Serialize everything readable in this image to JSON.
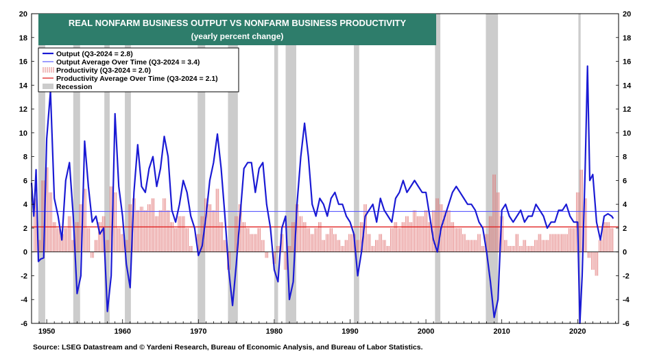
{
  "chart_data": {
    "type": "line",
    "title": "REAL NONFARM BUSINESS OUTPUT VS NONFARM BUSINESS PRODUCTIVITY",
    "subtitle": "(yearly percent change)",
    "source": "Source: LSEG Datastream and © Yardeni Research, Bureau of Economic Analysis, and Bureau of Labor Statistics.",
    "xlim": [
      1948,
      2025.4
    ],
    "ylim": [
      -6,
      20
    ],
    "y_ticks": [
      -6,
      -4,
      -2,
      0,
      2,
      4,
      6,
      8,
      10,
      12,
      14,
      16,
      18,
      20
    ],
    "y_tick_labels": [
      "-6",
      "-4",
      "-2",
      "0",
      "2",
      "4",
      "6",
      "8",
      "10",
      "12",
      "14",
      "16",
      "18",
      "20"
    ],
    "x_tick_labels": [
      "1950",
      "1960",
      "1970",
      "1980",
      "1990",
      "2000",
      "2010",
      "2020"
    ],
    "x_ticks": [
      1950,
      1960,
      1970,
      1980,
      1990,
      2000,
      2010,
      2020
    ],
    "legend_position": "top-left",
    "legend": [
      "Output (Q3-2024 = 2.8)",
      "Output Average Over Time (Q3-2024 = 3.4)",
      "Productivity  (Q3-2024 = 2.0)",
      "Productivity Average Over Time (Q3-2024 = 2.1)",
      "Recession"
    ],
    "colors": {
      "output": "#1a1ad4",
      "output_avg": "#5a5aff",
      "productivity": "#e07070",
      "productivity_avg": "#e02020",
      "recession": "#cccccc",
      "title_bg": "#2e7d6b"
    },
    "output_avg": 3.4,
    "productivity_avg": 2.1,
    "recessions": [
      [
        1948.9,
        1949.8
      ],
      [
        1953.5,
        1954.4
      ],
      [
        1957.6,
        1958.3
      ],
      [
        1960.3,
        1961.1
      ],
      [
        1969.9,
        1970.9
      ],
      [
        1973.9,
        1975.2
      ],
      [
        1980.0,
        1980.5
      ],
      [
        1981.5,
        1982.9
      ],
      [
        1990.5,
        1991.2
      ],
      [
        2001.2,
        2001.9
      ],
      [
        2007.9,
        2009.5
      ],
      [
        2020.1,
        2020.4
      ]
    ],
    "output_series": {
      "name": "Output",
      "x": [
        1948.0,
        1948.3,
        1948.6,
        1948.9,
        1949.2,
        1949.6,
        1950.0,
        1950.5,
        1951.0,
        1951.5,
        1952.0,
        1952.5,
        1953.0,
        1953.5,
        1954.0,
        1954.5,
        1955.0,
        1955.5,
        1956.0,
        1956.5,
        1957.0,
        1957.5,
        1958.0,
        1958.5,
        1959.0,
        1959.5,
        1960.0,
        1960.5,
        1961.0,
        1961.5,
        1962.0,
        1962.5,
        1963.0,
        1963.5,
        1964.0,
        1964.5,
        1965.0,
        1965.5,
        1966.0,
        1966.5,
        1967.0,
        1967.5,
        1968.0,
        1968.5,
        1969.0,
        1969.5,
        1970.0,
        1970.5,
        1971.0,
        1971.5,
        1972.0,
        1972.5,
        1973.0,
        1973.5,
        1974.0,
        1974.5,
        1975.0,
        1975.5,
        1976.0,
        1976.5,
        1977.0,
        1977.5,
        1978.0,
        1978.5,
        1979.0,
        1979.5,
        1980.0,
        1980.5,
        1981.0,
        1981.5,
        1982.0,
        1982.5,
        1983.0,
        1983.5,
        1984.0,
        1984.5,
        1985.0,
        1985.5,
        1986.0,
        1986.5,
        1987.0,
        1987.5,
        1988.0,
        1988.5,
        1989.0,
        1989.5,
        1990.0,
        1990.5,
        1991.0,
        1991.5,
        1992.0,
        1992.5,
        1993.0,
        1993.5,
        1994.0,
        1994.5,
        1995.0,
        1995.5,
        1996.0,
        1996.5,
        1997.0,
        1997.5,
        1998.0,
        1998.5,
        1999.0,
        1999.5,
        2000.0,
        2000.5,
        2001.0,
        2001.5,
        2002.0,
        2002.5,
        2003.0,
        2003.5,
        2004.0,
        2004.5,
        2005.0,
        2005.5,
        2006.0,
        2006.5,
        2007.0,
        2007.5,
        2008.0,
        2008.5,
        2009.0,
        2009.5,
        2010.0,
        2010.5,
        2011.0,
        2011.5,
        2012.0,
        2012.5,
        2013.0,
        2013.5,
        2014.0,
        2014.5,
        2015.0,
        2015.5,
        2016.0,
        2016.5,
        2017.0,
        2017.5,
        2018.0,
        2018.5,
        2019.0,
        2019.5,
        2020.0,
        2020.3,
        2020.6,
        2021.0,
        2021.3,
        2021.6,
        2022.0,
        2022.5,
        2023.0,
        2023.5,
        2024.0,
        2024.5,
        2024.7
      ],
      "values": [
        5.8,
        3.0,
        6.9,
        -0.8,
        -0.6,
        -0.5,
        9.5,
        13.5,
        4.5,
        3.0,
        1.0,
        6.0,
        7.5,
        3.0,
        -3.5,
        -2.0,
        9.3,
        5.5,
        2.5,
        3.0,
        1.5,
        2.0,
        -5.0,
        -2.0,
        11.6,
        5.5,
        3.0,
        -1.0,
        -3.0,
        5.0,
        9.0,
        5.5,
        5.0,
        7.0,
        8.0,
        5.5,
        7.0,
        9.7,
        8.0,
        3.5,
        2.5,
        4.0,
        6.0,
        5.0,
        3.0,
        2.0,
        -0.3,
        0.5,
        3.0,
        6.0,
        7.5,
        9.9,
        7.0,
        3.0,
        -1.5,
        -4.5,
        -1.0,
        3.0,
        7.0,
        7.5,
        7.5,
        5.0,
        7.0,
        7.5,
        4.0,
        2.0,
        -1.5,
        -2.5,
        2.0,
        3.0,
        -4.0,
        -2.5,
        4.0,
        8.0,
        10.8,
        8.0,
        4.0,
        3.0,
        4.5,
        4.0,
        3.0,
        4.5,
        5.0,
        4.0,
        4.0,
        3.0,
        2.5,
        1.5,
        -2.0,
        0.0,
        3.0,
        3.5,
        4.0,
        2.5,
        4.5,
        3.5,
        3.0,
        2.5,
        4.5,
        5.0,
        6.0,
        5.0,
        5.5,
        6.0,
        5.5,
        5.0,
        5.0,
        3.0,
        1.0,
        0.0,
        2.0,
        3.0,
        4.0,
        5.0,
        5.5,
        5.0,
        4.5,
        4.0,
        4.0,
        3.5,
        2.5,
        2.0,
        0.0,
        -2.5,
        -5.5,
        -4.0,
        3.5,
        4.0,
        3.0,
        2.5,
        3.0,
        3.5,
        2.5,
        3.0,
        3.0,
        4.0,
        3.5,
        3.0,
        2.0,
        2.5,
        2.5,
        3.5,
        3.5,
        4.0,
        3.0,
        2.5,
        2.5,
        -6.0,
        -2.0,
        7.0,
        15.6,
        6.0,
        6.5,
        2.5,
        1.0,
        3.0,
        3.2,
        3.0,
        2.8
      ]
    },
    "productivity_series": {
      "name": "Productivity",
      "x": [
        1948.5,
        1949.0,
        1949.5,
        1950.0,
        1950.5,
        1951.0,
        1951.5,
        1952.0,
        1952.5,
        1953.0,
        1953.5,
        1954.0,
        1954.5,
        1955.0,
        1955.5,
        1956.0,
        1956.5,
        1957.0,
        1957.5,
        1958.0,
        1958.5,
        1959.0,
        1959.5,
        1960.0,
        1960.5,
        1961.0,
        1961.5,
        1962.0,
        1962.5,
        1963.0,
        1963.5,
        1964.0,
        1964.5,
        1965.0,
        1965.5,
        1966.0,
        1966.5,
        1967.0,
        1967.5,
        1968.0,
        1968.5,
        1969.0,
        1969.5,
        1970.0,
        1970.5,
        1971.0,
        1971.5,
        1972.0,
        1972.5,
        1973.0,
        1973.5,
        1974.0,
        1974.5,
        1975.0,
        1975.5,
        1976.0,
        1976.5,
        1977.0,
        1977.5,
        1978.0,
        1978.5,
        1979.0,
        1979.5,
        1980.0,
        1980.5,
        1981.0,
        1981.5,
        1982.0,
        1982.5,
        1983.0,
        1983.5,
        1984.0,
        1984.5,
        1985.0,
        1985.5,
        1986.0,
        1986.5,
        1987.0,
        1987.5,
        1988.0,
        1988.5,
        1989.0,
        1989.5,
        1990.0,
        1990.5,
        1991.0,
        1991.5,
        1992.0,
        1992.5,
        1993.0,
        1993.5,
        1994.0,
        1994.5,
        1995.0,
        1995.5,
        1996.0,
        1996.5,
        1997.0,
        1997.5,
        1998.0,
        1998.5,
        1999.0,
        1999.5,
        2000.0,
        2000.5,
        2001.0,
        2001.5,
        2002.0,
        2002.5,
        2003.0,
        2003.5,
        2004.0,
        2004.5,
        2005.0,
        2005.5,
        2006.0,
        2006.5,
        2007.0,
        2007.5,
        2008.0,
        2008.5,
        2009.0,
        2009.5,
        2010.0,
        2010.5,
        2011.0,
        2011.5,
        2012.0,
        2012.5,
        2013.0,
        2013.5,
        2014.0,
        2014.5,
        2015.0,
        2015.5,
        2016.0,
        2016.5,
        2017.0,
        2017.5,
        2018.0,
        2018.5,
        2019.0,
        2019.5,
        2020.0,
        2020.5,
        2021.0,
        2021.5,
        2022.0,
        2022.5,
        2023.0,
        2023.5,
        2024.0,
        2024.5
      ],
      "values": [
        4.5,
        1.0,
        6.0,
        7.1,
        5.0,
        2.5,
        2.0,
        1.5,
        2.0,
        3.0,
        1.0,
        2.5,
        4.0,
        5.3,
        2.0,
        -0.5,
        1.0,
        2.5,
        3.0,
        1.0,
        5.5,
        5.0,
        2.0,
        1.5,
        1.0,
        4.0,
        4.5,
        3.5,
        3.8,
        3.5,
        4.0,
        4.5,
        3.0,
        3.5,
        4.5,
        3.5,
        2.5,
        2.0,
        3.0,
        3.0,
        2.0,
        0.5,
        0.0,
        1.5,
        3.0,
        4.5,
        4.0,
        3.5,
        5.3,
        2.5,
        1.0,
        -1.5,
        0.0,
        3.0,
        4.0,
        2.5,
        2.0,
        1.5,
        1.5,
        2.0,
        1.0,
        -0.5,
        0.0,
        -1.0,
        0.5,
        1.5,
        -1.5,
        0.5,
        2.5,
        4.0,
        3.0,
        2.5,
        2.0,
        1.5,
        2.0,
        2.5,
        1.0,
        1.5,
        2.0,
        1.5,
        1.0,
        0.5,
        1.0,
        1.5,
        1.5,
        1.0,
        2.5,
        4.0,
        1.5,
        0.5,
        1.0,
        1.5,
        1.0,
        0.5,
        2.0,
        2.5,
        2.0,
        2.5,
        3.0,
        2.5,
        3.5,
        3.0,
        3.0,
        3.5,
        2.5,
        3.5,
        4.5,
        4.0,
        3.5,
        3.5,
        2.5,
        2.0,
        2.0,
        1.5,
        1.0,
        1.0,
        1.0,
        1.5,
        0.5,
        1.5,
        3.0,
        6.5,
        5.0,
        3.0,
        1.0,
        0.5,
        0.5,
        1.5,
        0.5,
        1.0,
        0.5,
        0.5,
        1.0,
        1.5,
        1.0,
        1.0,
        1.5,
        1.5,
        1.5,
        1.5,
        1.5,
        2.0,
        2.0,
        5.0,
        6.9,
        4.5,
        -0.5,
        -1.5,
        -2.0,
        1.0,
        2.5,
        2.5,
        2.0
      ]
    }
  }
}
